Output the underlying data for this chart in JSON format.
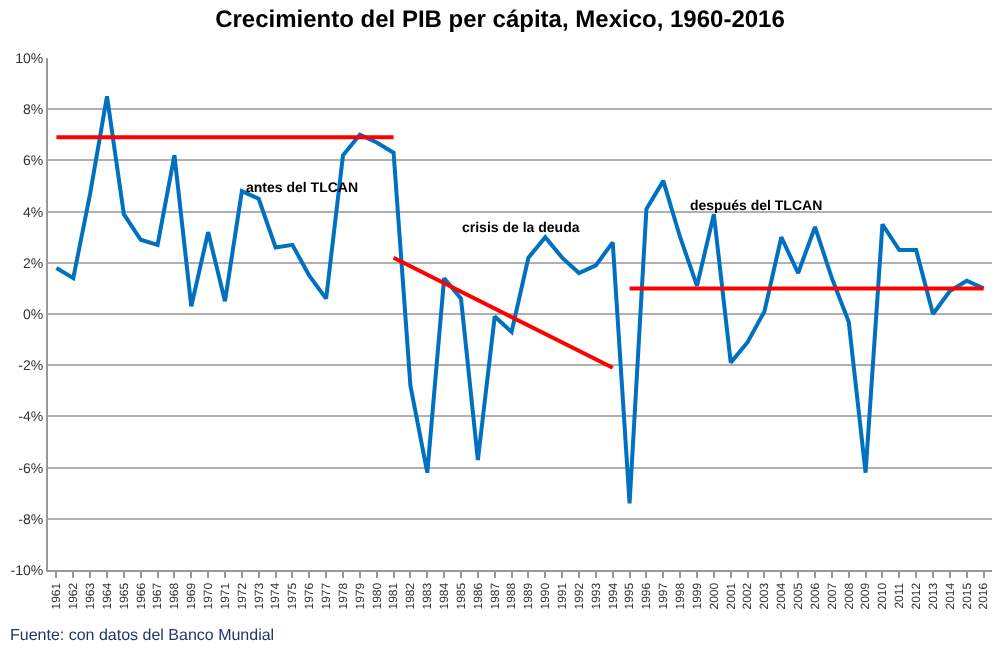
{
  "chart_data": {
    "type": "line",
    "title": "Crecimiento del PIB per cápita, Mexico, 1960-2016",
    "categories": [
      "1961",
      "1962",
      "1963",
      "1964",
      "1965",
      "1966",
      "1967",
      "1968",
      "1969",
      "1970",
      "1971",
      "1972",
      "1973",
      "1974",
      "1975",
      "1976",
      "1977",
      "1978",
      "1979",
      "1980",
      "1981",
      "1982",
      "1983",
      "1984",
      "1985",
      "1986",
      "1987",
      "1988",
      "1989",
      "1990",
      "1991",
      "1992",
      "1993",
      "1994",
      "1995",
      "1996",
      "1997",
      "1998",
      "1999",
      "2000",
      "2001",
      "2002",
      "2003",
      "2004",
      "2005",
      "2006",
      "2007",
      "2008",
      "2009",
      "2010",
      "2011",
      "2012",
      "2013",
      "2014",
      "2015",
      "2016"
    ],
    "series": [
      {
        "color": "#0070c0",
        "values": [
          1.8,
          1.4,
          4.7,
          8.5,
          3.9,
          2.9,
          2.7,
          6.2,
          0.3,
          3.2,
          0.5,
          4.8,
          4.5,
          2.6,
          2.7,
          1.5,
          0.6,
          6.2,
          7.0,
          6.7,
          6.3,
          -2.8,
          -6.2,
          1.4,
          0.6,
          -5.7,
          -0.1,
          -0.7,
          2.2,
          3.0,
          2.2,
          1.6,
          1.9,
          2.8,
          -7.4,
          4.1,
          5.2,
          3.0,
          1.1,
          3.9,
          -1.9,
          -1.1,
          0.1,
          3.0,
          1.6,
          3.4,
          1.4,
          -0.3,
          -6.2,
          3.5,
          2.5,
          2.5,
          0.0,
          0.9,
          1.3,
          1.0
        ]
      },
      {
        "type": "line",
        "color": "#ff0000",
        "values": [
          6.9,
          null,
          null,
          null,
          null,
          null,
          null,
          null,
          null,
          null,
          null,
          null,
          null,
          null,
          null,
          null,
          null,
          null,
          null,
          null,
          6.9,
          null,
          null,
          null,
          null,
          null,
          null,
          null,
          null,
          null,
          null,
          null,
          null,
          null,
          null,
          null,
          null,
          null,
          null,
          null,
          null,
          null,
          null,
          null,
          null,
          null,
          null,
          null,
          null,
          null,
          null,
          null,
          null,
          null,
          null,
          null
        ]
      },
      {
        "type": "line",
        "color": "#ff0000",
        "values": [
          null,
          null,
          null,
          null,
          null,
          null,
          null,
          null,
          null,
          null,
          null,
          null,
          null,
          null,
          null,
          null,
          null,
          null,
          null,
          null,
          2.2,
          null,
          null,
          null,
          null,
          null,
          null,
          null,
          null,
          null,
          null,
          null,
          null,
          -2.1,
          null,
          null,
          null,
          null,
          null,
          null,
          null,
          null,
          null,
          null,
          null,
          null,
          null,
          null,
          null,
          null,
          null,
          null,
          null,
          null,
          null,
          null
        ]
      },
      {
        "type": "line",
        "color": "#ff0000",
        "values": [
          null,
          null,
          null,
          null,
          null,
          null,
          null,
          null,
          null,
          null,
          null,
          null,
          null,
          null,
          null,
          null,
          null,
          null,
          null,
          null,
          null,
          null,
          null,
          null,
          null,
          null,
          null,
          null,
          null,
          null,
          null,
          null,
          null,
          null,
          1.0,
          null,
          null,
          null,
          null,
          null,
          null,
          null,
          null,
          null,
          null,
          null,
          null,
          null,
          null,
          null,
          null,
          null,
          null,
          null,
          null,
          1.0
        ]
      }
    ],
    "ylim": [
      -10,
      10
    ],
    "yticks": [
      {
        "value": -10,
        "label": "-10%"
      },
      {
        "value": -8,
        "label": "-8%"
      },
      {
        "value": -6,
        "label": "-6%"
      },
      {
        "value": -4,
        "label": "-4%"
      },
      {
        "value": -2,
        "label": "-2%"
      },
      {
        "value": 0,
        "label": "0%"
      },
      {
        "value": 2,
        "label": "2%"
      },
      {
        "value": 4,
        "label": "4%"
      },
      {
        "value": 6,
        "label": "6%"
      },
      {
        "value": 8,
        "label": "8%"
      },
      {
        "value": 10,
        "label": "10%"
      }
    ],
    "grid": "y",
    "marker": "none",
    "line_style": "solid",
    "annotations": [
      "antes del TLCAN",
      "crisis de la deuda",
      "después del TLCAN",
      "Fuente: con datos del Banco Mundial"
    ]
  }
}
